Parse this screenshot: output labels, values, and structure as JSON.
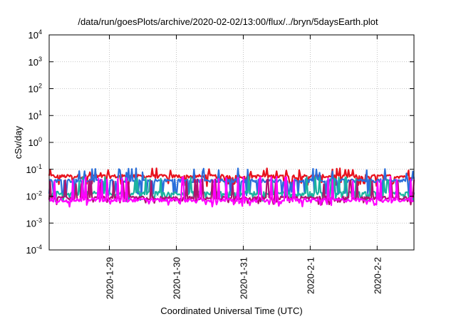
{
  "chart_data": {
    "type": "line",
    "title": "/data/run/goesPlots/archive/2020-02-02/13:00/flux/../bryn/5daysEarth.plot",
    "xlabel": "Coordinated Universal Time (UTC)",
    "ylabel": "cSv/day",
    "yscale": "log",
    "ylim": [
      0.0001,
      10000
    ],
    "y_ticks": [
      {
        "value": 0.0001,
        "base": "10",
        "exp": "-4"
      },
      {
        "value": 0.001,
        "base": "10",
        "exp": "-3"
      },
      {
        "value": 0.01,
        "base": "10",
        "exp": "-2"
      },
      {
        "value": 0.1,
        "base": "10",
        "exp": "-1"
      },
      {
        "value": 1,
        "base": "10",
        "exp": "0"
      },
      {
        "value": 10,
        "base": "10",
        "exp": "1"
      },
      {
        "value": 100,
        "base": "10",
        "exp": "2"
      },
      {
        "value": 1000,
        "base": "10",
        "exp": "3"
      },
      {
        "value": 10000,
        "base": "10",
        "exp": "4"
      }
    ],
    "xlim_days": [
      28.1,
      33.55
    ],
    "x_ticks": [
      {
        "label": "2020-1-29",
        "day": 29
      },
      {
        "label": "2020-1-30",
        "day": 30
      },
      {
        "label": "2020-1-31",
        "day": 31
      },
      {
        "label": "2020-2-1",
        "day": 32
      },
      {
        "label": "2020-2-2",
        "day": 33
      }
    ],
    "grid": true,
    "series": [
      {
        "color": "#e8111c",
        "base": 0.055,
        "dips": 0.028,
        "spikes": 0.1
      },
      {
        "color": "#2a6fdb",
        "base": 0.038,
        "dips": 0.012,
        "spikes": 0.1
      },
      {
        "color": "#1bb3a0",
        "base": 0.013,
        "dips": 0.008,
        "spikes": 0.05
      },
      {
        "color": "#b0126e",
        "base": 0.0085,
        "dips": 0.006,
        "spikes": 0.04
      },
      {
        "color": "#ff00ff",
        "base": 0.0072,
        "dips": 0.005,
        "spikes": 0.05
      }
    ]
  }
}
